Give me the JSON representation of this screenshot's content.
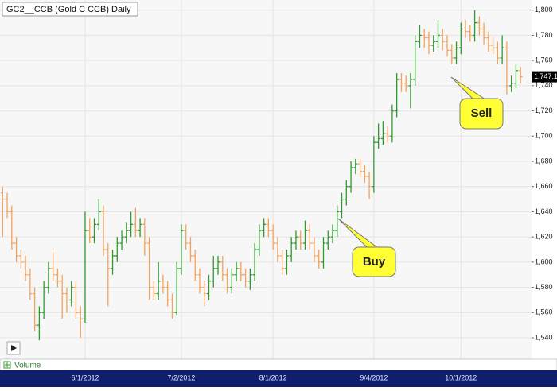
{
  "chart_data": {
    "type": "ohlc",
    "title": "GC2__CCB (Gold C CCB) Daily",
    "categories": [
      null,
      null,
      null,
      null,
      null,
      null,
      null,
      null,
      null,
      null,
      null,
      null,
      null,
      null,
      null,
      null,
      null,
      null,
      "6/1/2012",
      null,
      null,
      null,
      null,
      null,
      null,
      null,
      null,
      null,
      null,
      null,
      null,
      null,
      null,
      null,
      null,
      null,
      null,
      null,
      null,
      "7/2/2012",
      null,
      null,
      null,
      null,
      null,
      null,
      null,
      null,
      null,
      null,
      null,
      null,
      null,
      null,
      null,
      null,
      null,
      null,
      null,
      "8/1/2012",
      null,
      null,
      null,
      null,
      null,
      null,
      null,
      null,
      null,
      null,
      null,
      null,
      null,
      null,
      null,
      null,
      null,
      null,
      null,
      null,
      null,
      "9/4/2012",
      null,
      null,
      null,
      null,
      null,
      null,
      null,
      null,
      null,
      null,
      null,
      null,
      null,
      null,
      null,
      null,
      null,
      null,
      "10/1/2012",
      null,
      null,
      null,
      null,
      null,
      null,
      null,
      null,
      null,
      null,
      null,
      null,
      null
    ],
    "open": [
      1655,
      1650,
      1640,
      1615,
      1605,
      1600,
      1590,
      1575,
      1550,
      1560,
      1580,
      1595,
      1590,
      1585,
      1575,
      1570,
      1580,
      1560,
      1555,
      1625,
      1620,
      1630,
      1640,
      1610,
      1595,
      1605,
      1615,
      1620,
      1625,
      1630,
      1625,
      1630,
      1615,
      1580,
      1575,
      1585,
      1580,
      1570,
      1560,
      1595,
      1625,
      1615,
      1605,
      1590,
      1580,
      1575,
      1585,
      1595,
      1600,
      1590,
      1580,
      1590,
      1595,
      1590,
      1585,
      1590,
      1610,
      1625,
      1630,
      1625,
      1615,
      1605,
      1595,
      1605,
      1615,
      1620,
      1615,
      1625,
      1615,
      1605,
      1600,
      1615,
      1620,
      1625,
      1640,
      1650,
      1660,
      1675,
      1678,
      1672,
      1668,
      1660,
      1695,
      1698,
      1702,
      1700,
      1720,
      1745,
      1742,
      1740,
      1745,
      1775,
      1780,
      1778,
      1772,
      1775,
      1780,
      1775,
      1768,
      1762,
      1770,
      1785,
      1783,
      1780,
      1790,
      1785,
      1778,
      1772,
      1770,
      1762,
      1770,
      1740,
      1742,
      1752
    ],
    "high": [
      1660,
      1655,
      1645,
      1620,
      1610,
      1605,
      1595,
      1580,
      1565,
      1585,
      1600,
      1608,
      1595,
      1590,
      1580,
      1585,
      1585,
      1565,
      1640,
      1635,
      1635,
      1650,
      1645,
      1615,
      1610,
      1620,
      1625,
      1632,
      1640,
      1643,
      1635,
      1635,
      1620,
      1585,
      1600,
      1590,
      1585,
      1575,
      1600,
      1630,
      1630,
      1620,
      1610,
      1595,
      1585,
      1590,
      1605,
      1605,
      1605,
      1595,
      1595,
      1600,
      1600,
      1595,
      1595,
      1615,
      1630,
      1635,
      1635,
      1630,
      1620,
      1610,
      1610,
      1620,
      1625,
      1625,
      1633,
      1630,
      1620,
      1610,
      1620,
      1625,
      1630,
      1645,
      1655,
      1665,
      1680,
      1682,
      1682,
      1677,
      1672,
      1700,
      1710,
      1712,
      1708,
      1725,
      1750,
      1750,
      1748,
      1750,
      1780,
      1788,
      1785,
      1783,
      1780,
      1792,
      1785,
      1780,
      1773,
      1775,
      1790,
      1792,
      1788,
      1800,
      1795,
      1790,
      1783,
      1778,
      1775,
      1780,
      1775,
      1748,
      1757,
      1755
    ],
    "low": [
      1620,
      1635,
      1610,
      1600,
      1595,
      1585,
      1570,
      1545,
      1538,
      1555,
      1575,
      1585,
      1580,
      1555,
      1560,
      1565,
      1555,
      1540,
      1552,
      1615,
      1615,
      1625,
      1605,
      1565,
      1590,
      1600,
      1610,
      1615,
      1620,
      1620,
      1620,
      1605,
      1570,
      1570,
      1570,
      1575,
      1565,
      1555,
      1558,
      1590,
      1610,
      1600,
      1585,
      1575,
      1565,
      1570,
      1580,
      1590,
      1585,
      1575,
      1575,
      1585,
      1585,
      1580,
      1578,
      1585,
      1605,
      1620,
      1620,
      1610,
      1600,
      1590,
      1590,
      1600,
      1610,
      1610,
      1610,
      1610,
      1600,
      1595,
      1595,
      1610,
      1615,
      1620,
      1635,
      1645,
      1655,
      1670,
      1667,
      1663,
      1650,
      1655,
      1690,
      1693,
      1695,
      1695,
      1715,
      1735,
      1735,
      1722,
      1740,
      1770,
      1770,
      1765,
      1767,
      1770,
      1768,
      1763,
      1757,
      1757,
      1765,
      1778,
      1775,
      1775,
      1780,
      1773,
      1767,
      1765,
      1757,
      1757,
      1733,
      1735,
      1738,
      1742
    ],
    "close": [
      1650,
      1640,
      1615,
      1605,
      1600,
      1590,
      1575,
      1550,
      1560,
      1580,
      1595,
      1590,
      1585,
      1575,
      1570,
      1580,
      1560,
      1555,
      1625,
      1620,
      1630,
      1640,
      1610,
      1595,
      1605,
      1615,
      1620,
      1625,
      1630,
      1625,
      1630,
      1615,
      1580,
      1575,
      1585,
      1580,
      1570,
      1560,
      1595,
      1625,
      1615,
      1605,
      1590,
      1580,
      1575,
      1585,
      1595,
      1600,
      1590,
      1580,
      1590,
      1595,
      1590,
      1585,
      1590,
      1610,
      1625,
      1630,
      1625,
      1615,
      1605,
      1595,
      1605,
      1615,
      1620,
      1615,
      1625,
      1615,
      1605,
      1600,
      1615,
      1620,
      1625,
      1640,
      1650,
      1660,
      1675,
      1678,
      1672,
      1668,
      1660,
      1695,
      1698,
      1702,
      1700,
      1720,
      1745,
      1742,
      1740,
      1745,
      1775,
      1780,
      1778,
      1772,
      1775,
      1780,
      1775,
      1768,
      1762,
      1770,
      1785,
      1783,
      1780,
      1790,
      1785,
      1778,
      1772,
      1770,
      1762,
      1770,
      1740,
      1742,
      1752,
      1747.1
    ],
    "up_color": "#2f9a2f",
    "down_color": "#f5a25c",
    "last_price": {
      "value": 1747.1,
      "label": "1,747.1"
    },
    "ylim": [
      1523,
      1808
    ],
    "yticks": [
      {
        "value": 1540,
        "label": "1,540"
      },
      {
        "value": 1560,
        "label": "1,560"
      },
      {
        "value": 1580,
        "label": "1,580"
      },
      {
        "value": 1600,
        "label": "1,600"
      },
      {
        "value": 1620,
        "label": "1,620"
      },
      {
        "value": 1640,
        "label": "1,640"
      },
      {
        "value": 1660,
        "label": "1,660"
      },
      {
        "value": 1680,
        "label": "1,680"
      },
      {
        "value": 1700,
        "label": "1,700"
      },
      {
        "value": 1720,
        "label": "1,720"
      },
      {
        "value": 1740,
        "label": "1,740"
      },
      {
        "value": 1760,
        "label": "1,760"
      },
      {
        "value": 1780,
        "label": "1,780"
      },
      {
        "value": 1800,
        "label": "1,800"
      }
    ],
    "grid": true,
    "annotations": [
      "Buy",
      "Sell"
    ],
    "volume_label": "Volume"
  }
}
